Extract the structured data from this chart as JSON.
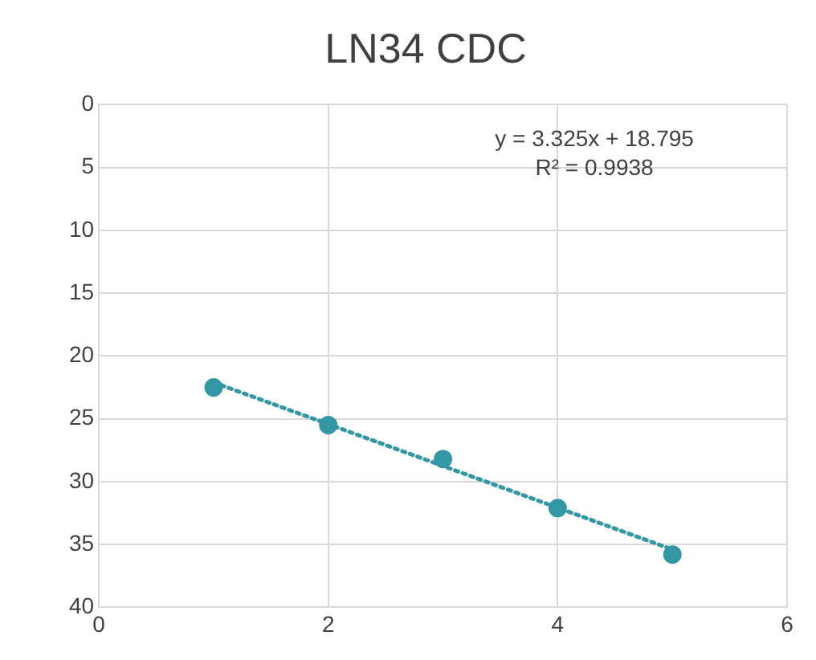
{
  "chart_data": {
    "type": "scatter",
    "title": "LN34 CDC",
    "x": [
      1,
      2,
      3,
      4,
      5
    ],
    "series": [
      {
        "type": "scatter",
        "color": "#3497a6",
        "values": [
          22.5,
          25.5,
          28.2,
          32.1,
          35.8
        ],
        "marker": "circle"
      },
      {
        "type": "line",
        "color": "#3497a6",
        "x": [
          1,
          5
        ],
        "values": [
          22.1,
          35.4
        ],
        "line_style": "dotted",
        "marker": "none"
      }
    ],
    "xlim": [
      0,
      6
    ],
    "xticks": [
      0,
      2,
      4,
      6
    ],
    "ylim": [
      40,
      0
    ],
    "yticks": [
      0,
      5,
      10,
      15,
      20,
      25,
      30,
      35,
      40
    ],
    "grid": true,
    "legend": false,
    "annotations": [
      "y = 3.325x + 18.795",
      "R² = 0.9938"
    ]
  }
}
